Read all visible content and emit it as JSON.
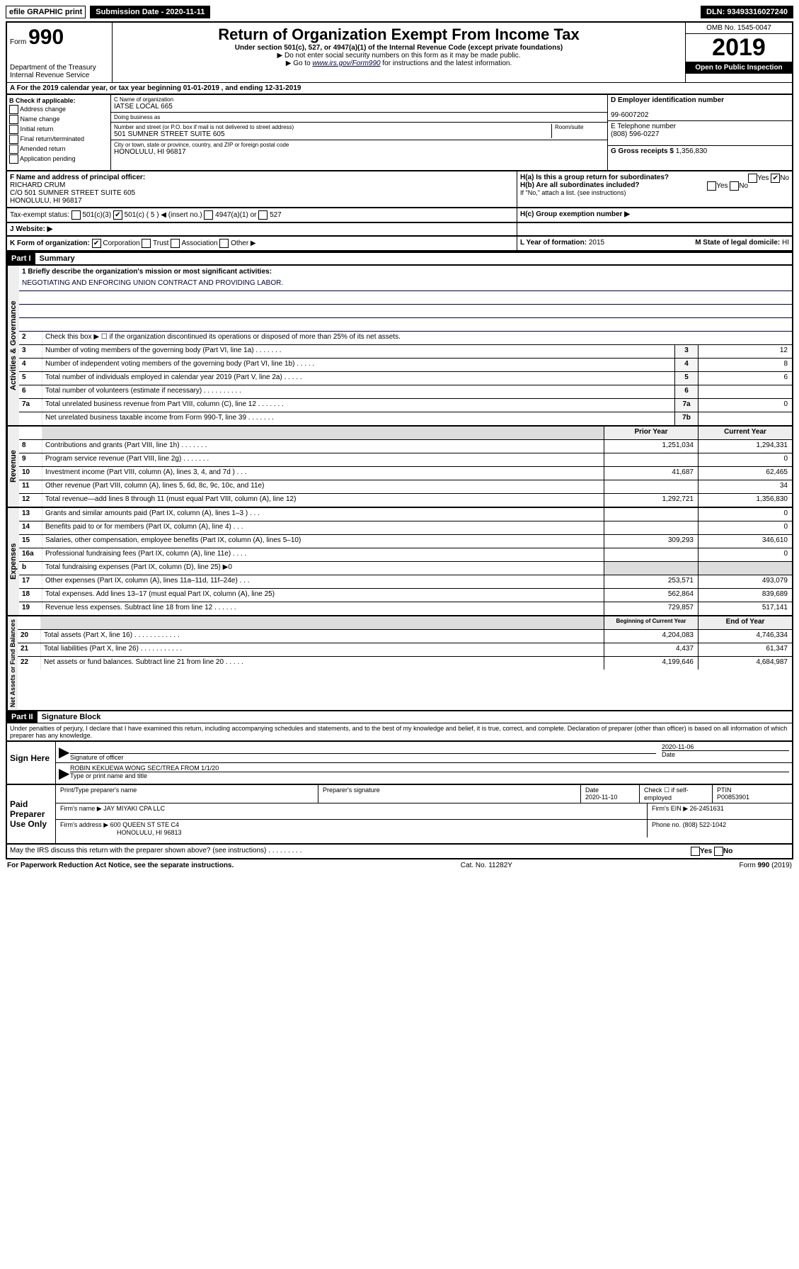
{
  "topbar": {
    "efile": "efile GRAPHIC print",
    "submission": "Submission Date - 2020-11-11",
    "dln": "DLN: 93493316027240"
  },
  "header": {
    "form_label": "Form",
    "form_num": "990",
    "dept1": "Department of the Treasury",
    "dept2": "Internal Revenue Service",
    "title": "Return of Organization Exempt From Income Tax",
    "sub": "Under section 501(c), 527, or 4947(a)(1) of the Internal Revenue Code (except private foundations)",
    "note1": "▶ Do not enter social security numbers on this form as it may be made public.",
    "note2_pre": "▶ Go to ",
    "note2_link": "www.irs.gov/Form990",
    "note2_post": " for instructions and the latest information.",
    "omb": "OMB No. 1545-0047",
    "year": "2019",
    "open": "Open to Public Inspection"
  },
  "row_a": "A For the 2019 calendar year, or tax year beginning 01-01-2019    , and ending 12-31-2019",
  "col_b": {
    "label": "B Check if applicable:",
    "items": [
      "Address change",
      "Name change",
      "Initial return",
      "Final return/terminated",
      "Amended return",
      "Application pending"
    ]
  },
  "col_c": {
    "name_label": "C Name of organization",
    "name": "IATSE LOCAL 665",
    "dba_label": "Doing business as",
    "dba": "",
    "addr_label": "Number and street (or P.O. box if mail is not delivered to street address)",
    "room_label": "Room/suite",
    "addr": "501 SUMNER STREET SUITE 605",
    "city_label": "City or town, state or province, country, and ZIP or foreign postal code",
    "city": "HONOLULU, HI  96817"
  },
  "col_d": {
    "ein_label": "D Employer identification number",
    "ein": "99-6007202",
    "phone_label": "E Telephone number",
    "phone": "(808) 596-0227",
    "gross_label": "G Gross receipts $",
    "gross": "1,356,830"
  },
  "row_f": {
    "label": "F  Name and address of principal officer:",
    "name": "RICHARD CRUM",
    "addr1": "C/O 501 SUMNER STREET SUITE 605",
    "addr2": "HONOLULU, HI  96817"
  },
  "row_h": {
    "ha": "H(a)  Is this a group return for subordinates?",
    "hb": "H(b)  Are all subordinates included?",
    "hb_note": "If \"No,\" attach a list. (see instructions)",
    "hc": "H(c)  Group exemption number ▶",
    "yes": "Yes",
    "no": "No"
  },
  "row_i": {
    "label": "Tax-exempt status:",
    "opts": [
      "501(c)(3)",
      "501(c) ( 5 ) ◀ (insert no.)",
      "4947(a)(1) or",
      "527"
    ]
  },
  "row_j": {
    "label": "J   Website: ▶"
  },
  "row_k": {
    "label": "K Form of organization:",
    "opts": [
      "Corporation",
      "Trust",
      "Association",
      "Other ▶"
    ],
    "l_label": "L Year of formation:",
    "l_val": "2015",
    "m_label": "M State of legal domicile:",
    "m_val": "HI"
  },
  "part1": {
    "header": "Part I",
    "title": "Summary"
  },
  "governance": {
    "label": "Activities & Governance",
    "mission_label": "1  Briefly describe the organization's mission or most significant activities:",
    "mission": "NEGOTIATING AND ENFORCING UNION CONTRACT AND PROVIDING LABOR.",
    "line2": "Check this box ▶ ☐  if the organization discontinued its operations or disposed of more than 25% of its net assets.",
    "lines": [
      {
        "n": "3",
        "t": "Number of voting members of the governing body (Part VI, line 1a)  .   .   .   .   .   .   .",
        "i": "3",
        "v": "12"
      },
      {
        "n": "4",
        "t": "Number of independent voting members of the governing body (Part VI, line 1b)  .   .   .   .   .",
        "i": "4",
        "v": "8"
      },
      {
        "n": "5",
        "t": "Total number of individuals employed in calendar year 2019 (Part V, line 2a)  .   .   .   .   .",
        "i": "5",
        "v": "6"
      },
      {
        "n": "6",
        "t": "Total number of volunteers (estimate if necessary)   .   .   .   .   .   .   .   .   .   .",
        "i": "6",
        "v": ""
      },
      {
        "n": "7a",
        "t": "Total unrelated business revenue from Part VIII, column (C), line 12  .   .   .   .   .   .   .",
        "i": "7a",
        "v": "0"
      },
      {
        "n": "",
        "t": "Net unrelated business taxable income from Form 990-T, line 39   .   .   .   .   .   .   .",
        "i": "7b",
        "v": ""
      }
    ]
  },
  "revenue": {
    "label": "Revenue",
    "header_prior": "Prior Year",
    "header_current": "Current Year",
    "lines": [
      {
        "n": "8",
        "t": "Contributions and grants (Part VIII, line 1h)   .   .   .   .   .   .   .",
        "p": "1,251,034",
        "c": "1,294,331"
      },
      {
        "n": "9",
        "t": "Program service revenue (Part VIII, line 2g)   .   .   .   .   .   .   .",
        "p": "",
        "c": "0"
      },
      {
        "n": "10",
        "t": "Investment income (Part VIII, column (A), lines 3, 4, and 7d )   .   .   .",
        "p": "41,687",
        "c": "62,465"
      },
      {
        "n": "11",
        "t": "Other revenue (Part VIII, column (A), lines 5, 6d, 8c, 9c, 10c, and 11e)",
        "p": "",
        "c": "34"
      },
      {
        "n": "12",
        "t": "Total revenue—add lines 8 through 11 (must equal Part VIII, column (A), line 12)",
        "p": "1,292,721",
        "c": "1,356,830"
      }
    ]
  },
  "expenses": {
    "label": "Expenses",
    "lines": [
      {
        "n": "13",
        "t": "Grants and similar amounts paid (Part IX, column (A), lines 1–3 )   .   .   .",
        "p": "",
        "c": "0"
      },
      {
        "n": "14",
        "t": "Benefits paid to or for members (Part IX, column (A), line 4)   .   .   .",
        "p": "",
        "c": "0"
      },
      {
        "n": "15",
        "t": "Salaries, other compensation, employee benefits (Part IX, column (A), lines 5–10)",
        "p": "309,293",
        "c": "346,610"
      },
      {
        "n": "16a",
        "t": "Professional fundraising fees (Part IX, column (A), line 11e)   .   .   .   .",
        "p": "",
        "c": "0"
      },
      {
        "n": "b",
        "t": "Total fundraising expenses (Part IX, column (D), line 25) ▶0",
        "p": "GREY",
        "c": "GREY"
      },
      {
        "n": "17",
        "t": "Other expenses (Part IX, column (A), lines 11a–11d, 11f–24e)  .   .   .",
        "p": "253,571",
        "c": "493,079"
      },
      {
        "n": "18",
        "t": "Total expenses. Add lines 13–17 (must equal Part IX, column (A), line 25)",
        "p": "562,864",
        "c": "839,689"
      },
      {
        "n": "19",
        "t": "Revenue less expenses. Subtract line 18 from line 12   .   .   .   .   .   .",
        "p": "729,857",
        "c": "517,141"
      }
    ]
  },
  "netassets": {
    "label": "Net Assets or Fund Balances",
    "header_begin": "Beginning of Current Year",
    "header_end": "End of Year",
    "lines": [
      {
        "n": "20",
        "t": "Total assets (Part X, line 16)  .   .   .   .   .   .   .   .   .   .   .   .",
        "p": "4,204,083",
        "c": "4,746,334"
      },
      {
        "n": "21",
        "t": "Total liabilities (Part X, line 26)  .   .   .   .   .   .   .   .   .   .   .",
        "p": "4,437",
        "c": "61,347"
      },
      {
        "n": "22",
        "t": "Net assets or fund balances. Subtract line 21 from line 20  .   .   .   .   .",
        "p": "4,199,646",
        "c": "4,684,987"
      }
    ]
  },
  "part2": {
    "header": "Part II",
    "title": "Signature Block"
  },
  "perjury": "Under penalties of perjury, I declare that I have examined this return, including accompanying schedules and statements, and to the best of my knowledge and belief, it is true, correct, and complete. Declaration of preparer (other than officer) is based on all information of which preparer has any knowledge.",
  "sign": {
    "label": "Sign Here",
    "sig_label": "Signature of officer",
    "date": "2020-11-06",
    "date_label": "Date",
    "name": "ROBIN KEKUEWA WONG SEC/TREA FROM 1/1/20",
    "name_label": "Type or print name and title"
  },
  "paid": {
    "label": "Paid Preparer Use Only",
    "col1": "Print/Type preparer's name",
    "col2": "Preparer's signature",
    "col3_label": "Date",
    "col3": "2020-11-10",
    "col4_label": "Check ☐ if self-employed",
    "col5_label": "PTIN",
    "col5": "P00853901",
    "firm_name_label": "Firm's name     ▶",
    "firm_name": "JAY MIYAKI CPA LLC",
    "firm_ein_label": "Firm's EIN ▶",
    "firm_ein": "26-2451631",
    "firm_addr_label": "Firm's address ▶",
    "firm_addr": "600 QUEEN ST STE C4",
    "firm_city": "HONOLULU, HI  96813",
    "firm_phone_label": "Phone no.",
    "firm_phone": "(808) 522-1042"
  },
  "discuss": {
    "text": "May the IRS discuss this return with the preparer shown above? (see instructions)   .   .   .   .   .   .   .   .   .",
    "yes": "Yes",
    "no": "No"
  },
  "footer": {
    "left": "For Paperwork Reduction Act Notice, see the separate instructions.",
    "mid": "Cat. No. 11282Y",
    "right": "Form 990 (2019)"
  }
}
